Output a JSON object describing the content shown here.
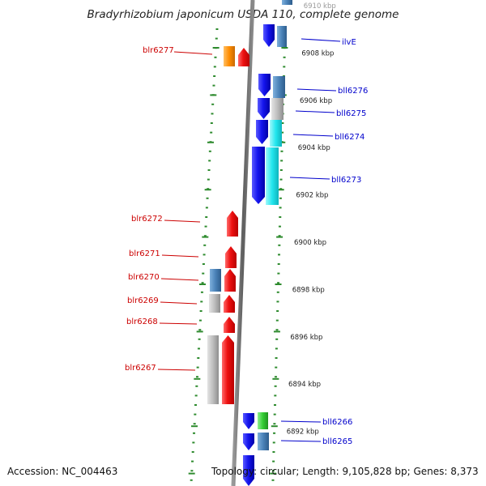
{
  "title": "Bradyrhizobium japonicum USDA 110, complete genome",
  "footer": {
    "accession": "Accession: NC_004463",
    "topology": "Topology: circular; Length: 9,105,828 bp; Genes: 8,373"
  },
  "scale": {
    "unit": "kbp",
    "ticks": [
      6910,
      6908,
      6906,
      6904,
      6902,
      6900,
      6898,
      6896,
      6894,
      6892
    ]
  },
  "colors": {
    "forward": "#ee1111",
    "reverse": "#1515ee",
    "steelblue": "#4a82b8",
    "gray": "#bdbdbd",
    "cyan": "#22e6ee",
    "orange": "#ff8c00",
    "green": "#33cc33",
    "label_forward": "#cc0000",
    "label_reverse": "#0000cc"
  },
  "genes_forward": [
    {
      "name": "blr6277"
    },
    {
      "name": "blr6272"
    },
    {
      "name": "blr6271"
    },
    {
      "name": "blr6270"
    },
    {
      "name": "blr6269"
    },
    {
      "name": "blr6268"
    },
    {
      "name": "blr6267"
    }
  ],
  "genes_reverse": [
    {
      "name": "ilvE"
    },
    {
      "name": "bll6276"
    },
    {
      "name": "bll6275"
    },
    {
      "name": "bll6274"
    },
    {
      "name": "bll6273"
    },
    {
      "name": "bll6266"
    },
    {
      "name": "bll6265"
    }
  ]
}
